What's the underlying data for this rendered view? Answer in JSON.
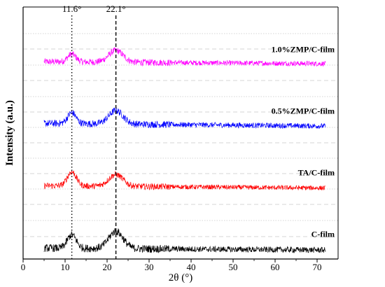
{
  "chart_data": {
    "type": "line",
    "title": "",
    "xlabel": "2θ (°)",
    "ylabel": "Intensity (a.u.)",
    "xlim": [
      0,
      75
    ],
    "x_ticks": [
      "0",
      "10",
      "20",
      "30",
      "40",
      "50",
      "60",
      "70"
    ],
    "x_tick_values": [
      0,
      10,
      20,
      30,
      40,
      50,
      60,
      70
    ],
    "x_range": [
      5,
      72
    ],
    "y_ticks_labeled": false,
    "grid": true,
    "annotations": [
      {
        "label": "11.6°",
        "x": 11.6,
        "line_style": "dotted"
      },
      {
        "label": "22.1°",
        "x": 22.1,
        "line_style": "dashed"
      }
    ],
    "series": [
      {
        "name": "1.0%ZMP/C-film",
        "color": "#ff00ff",
        "order": 0,
        "baseline": 0.14,
        "noise": 0.085,
        "peaks": [
          {
            "x": 11.6,
            "height": 0.2,
            "width": 1.4
          },
          {
            "x": 22.1,
            "height": 0.3,
            "width": 2.4
          }
        ],
        "decay": 0.05
      },
      {
        "name": "0.5%ZMP/C-film",
        "color": "#0000ff",
        "order": 1,
        "baseline": 0.14,
        "noise": 0.09,
        "peaks": [
          {
            "x": 11.6,
            "height": 0.28,
            "width": 1.4
          },
          {
            "x": 22.1,
            "height": 0.34,
            "width": 2.4
          }
        ],
        "decay": 0.07
      },
      {
        "name": "TA/C-film",
        "color": "#ff0000",
        "order": 2,
        "baseline": 0.12,
        "noise": 0.08,
        "peaks": [
          {
            "x": 11.6,
            "height": 0.36,
            "width": 1.5
          },
          {
            "x": 22.1,
            "height": 0.3,
            "width": 2.4
          }
        ],
        "decay": 0.06
      },
      {
        "name": "C-film",
        "color": "#000000",
        "order": 3,
        "baseline": 0.1,
        "noise": 0.1,
        "peaks": [
          {
            "x": 11.6,
            "height": 0.34,
            "width": 1.5
          },
          {
            "x": 22.1,
            "height": 0.44,
            "width": 2.4
          }
        ],
        "decay": 0.05
      }
    ]
  }
}
